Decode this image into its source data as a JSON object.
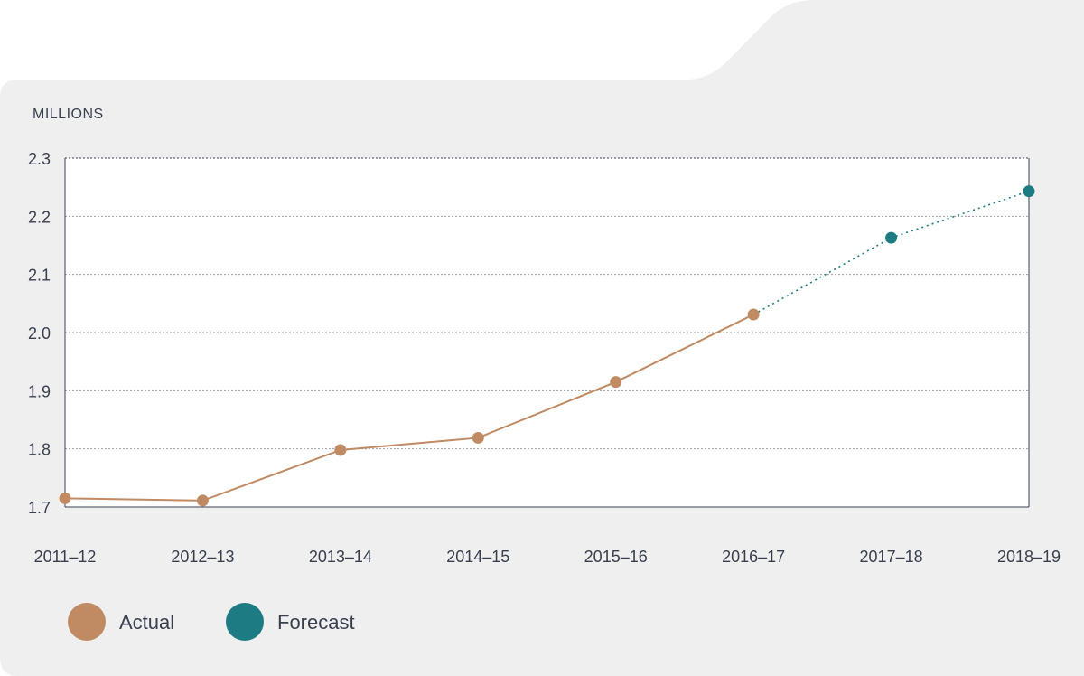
{
  "chart_data": {
    "type": "line",
    "ylabel": "MILLIONS",
    "categories": [
      "2011–12",
      "2012–13",
      "2013–14",
      "2014–15",
      "2015–16",
      "2016–17",
      "2017–18",
      "2018–19"
    ],
    "yticks": [
      "1.7",
      "1.8",
      "1.9",
      "2.0",
      "2.1",
      "2.2",
      "2.3"
    ],
    "ylim": [
      1.7,
      2.3
    ],
    "grid": true,
    "legend_placement": "bottom-left",
    "series": [
      {
        "name": "Actual",
        "color": "#c08a63",
        "line_style": "solid",
        "points": [
          {
            "x": "2011–12",
            "y": 1.715
          },
          {
            "x": "2012–13",
            "y": 1.711
          },
          {
            "x": "2013–14",
            "y": 1.798
          },
          {
            "x": "2014–15",
            "y": 1.819
          },
          {
            "x": "2015–16",
            "y": 1.915
          },
          {
            "x": "2016–17",
            "y": 2.031
          }
        ]
      },
      {
        "name": "Forecast",
        "color": "#1d7b84",
        "line_style": "dotted",
        "points": [
          {
            "x": "2016–17",
            "y": 2.031
          },
          {
            "x": "2017–18",
            "y": 2.163
          },
          {
            "x": "2018–19",
            "y": 2.243
          }
        ]
      }
    ],
    "legend": [
      {
        "label": "Actual",
        "color": "#c08a63"
      },
      {
        "label": "Forecast",
        "color": "#1d7b84"
      }
    ]
  },
  "colors": {
    "panel": "#efeff0",
    "grid": "#9a9ca3",
    "axis": "#3a3f4e"
  }
}
